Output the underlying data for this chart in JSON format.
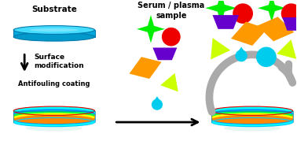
{
  "bg_color": "#ffffff",
  "substrate_label": "Substrate",
  "surface_mod_label": "Surface\nmodification",
  "antifouling_label": "Antifouling coating",
  "serum_label": "Serum / plasma\nsample",
  "shape_colors": {
    "green": "#00ee00",
    "red": "#ee0000",
    "orange": "#ff9900",
    "purple": "#6600cc",
    "yellow": "#ccff00",
    "cyan": "#00ccee"
  }
}
